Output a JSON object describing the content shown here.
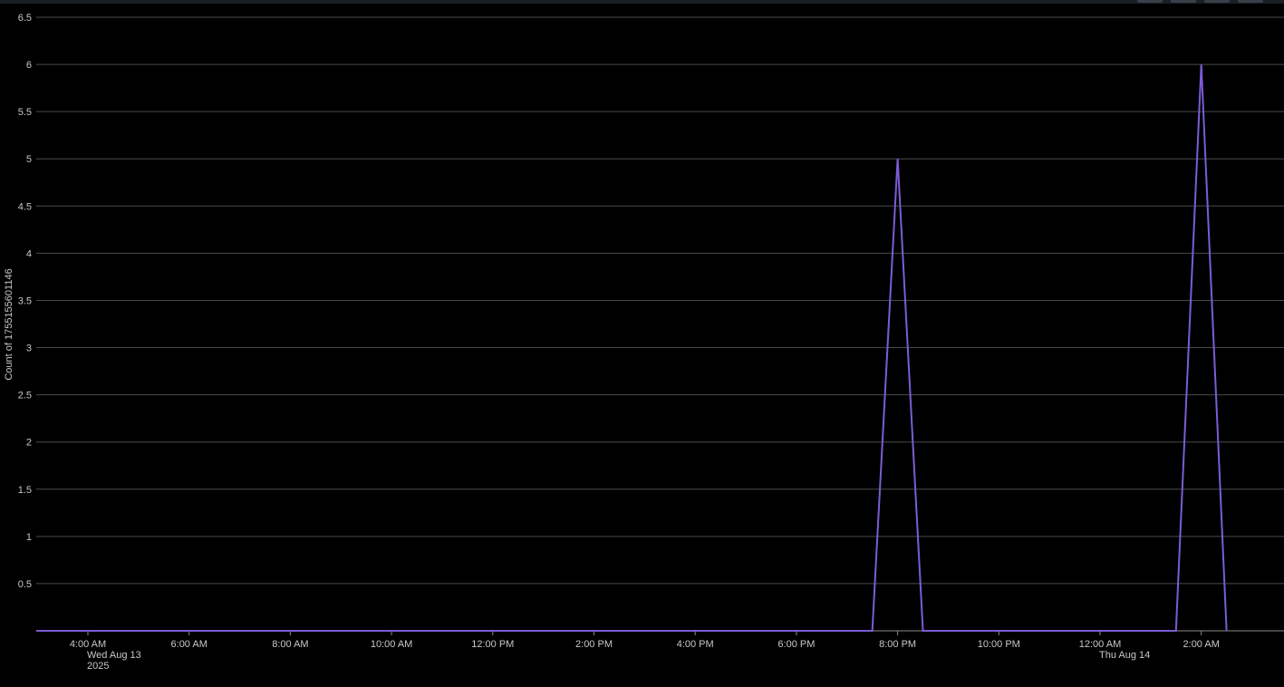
{
  "chart_data": {
    "type": "line",
    "ylabel": "Count of 1755155601146",
    "xlabel": "",
    "ylim": [
      0,
      6.5
    ],
    "y_ticks": [
      0.5,
      1,
      1.5,
      2,
      2.5,
      3,
      3.5,
      4,
      4.5,
      5,
      5.5,
      6,
      6.5
    ],
    "y_tick_labels": [
      "0.5",
      "1",
      "1.5",
      "2",
      "2.5",
      "3",
      "3.5",
      "4",
      "4.5",
      "5",
      "5.5",
      "6",
      "6.5"
    ],
    "x_ticks": [
      {
        "label": "4:00 AM",
        "sub": [
          "Wed Aug 13",
          "2025"
        ]
      },
      {
        "label": "6:00 AM",
        "sub": []
      },
      {
        "label": "8:00 AM",
        "sub": []
      },
      {
        "label": "10:00 AM",
        "sub": []
      },
      {
        "label": "12:00 PM",
        "sub": []
      },
      {
        "label": "2:00 PM",
        "sub": []
      },
      {
        "label": "4:00 PM",
        "sub": []
      },
      {
        "label": "6:00 PM",
        "sub": []
      },
      {
        "label": "8:00 PM",
        "sub": []
      },
      {
        "label": "10:00 PM",
        "sub": []
      },
      {
        "label": "12:00 AM",
        "sub": [
          "Thu Aug 14"
        ]
      },
      {
        "label": "2:00 AM",
        "sub": []
      }
    ],
    "grid": true,
    "series": [
      {
        "color": "#7b5cd6",
        "points": [
          {
            "t": "2025-08-13 03:00",
            "y": 0
          },
          {
            "t": "2025-08-13 19:30",
            "y": 0
          },
          {
            "t": "2025-08-13 20:00",
            "y": 5
          },
          {
            "t": "2025-08-13 20:30",
            "y": 0
          },
          {
            "t": "2025-08-14 01:30",
            "y": 0
          },
          {
            "t": "2025-08-14 02:00",
            "y": 6
          },
          {
            "t": "2025-08-14 02:30",
            "y": 0
          }
        ]
      }
    ]
  }
}
